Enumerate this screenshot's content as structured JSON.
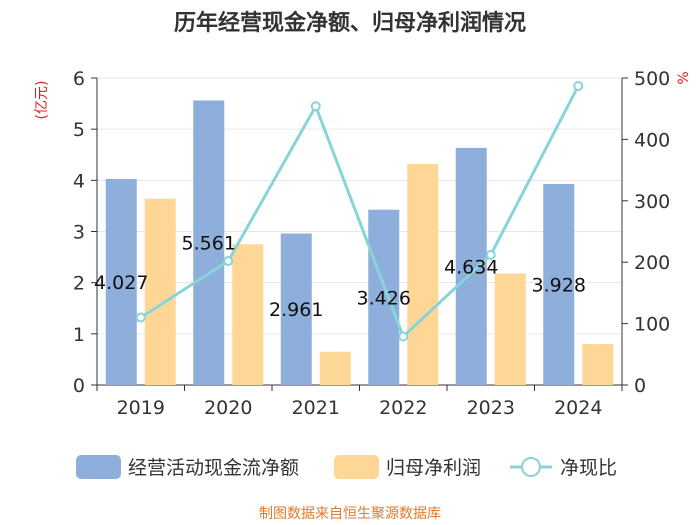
{
  "chart_data": {
    "type": "bar",
    "title": "历年经营现金净额、归母净利润情况",
    "categories": [
      "2019",
      "2020",
      "2021",
      "2022",
      "2023",
      "2024"
    ],
    "series": [
      {
        "name": "经营活动现金流净额",
        "kind": "bar",
        "axis": "left",
        "color": "#8eaedc",
        "values": [
          4.027,
          5.561,
          2.961,
          3.426,
          4.634,
          3.928
        ],
        "labels": [
          "4.027",
          "5.561",
          "2.961",
          "3.426",
          "4.634",
          "3.928"
        ]
      },
      {
        "name": "归母净利润",
        "kind": "bar",
        "axis": "left",
        "color": "#fed796",
        "values": [
          3.64,
          2.75,
          0.65,
          4.32,
          2.18,
          0.8
        ]
      },
      {
        "name": "净现比",
        "kind": "line",
        "axis": "right",
        "color": "#88d4d8",
        "values": [
          110,
          202,
          454,
          79,
          212,
          487
        ]
      }
    ],
    "yaxis_left": {
      "unit": "(亿元)",
      "min": 0,
      "max": 6,
      "ticks": [
        "0",
        "1",
        "2",
        "3",
        "4",
        "5",
        "6"
      ]
    },
    "yaxis_right": {
      "unit": "%",
      "min": 0,
      "max": 500,
      "ticks": [
        "0",
        "100",
        "200",
        "300",
        "400",
        "500"
      ]
    },
    "grid": true,
    "legend_position": "bottom"
  },
  "source": "制图数据来自恒生聚源数据库"
}
